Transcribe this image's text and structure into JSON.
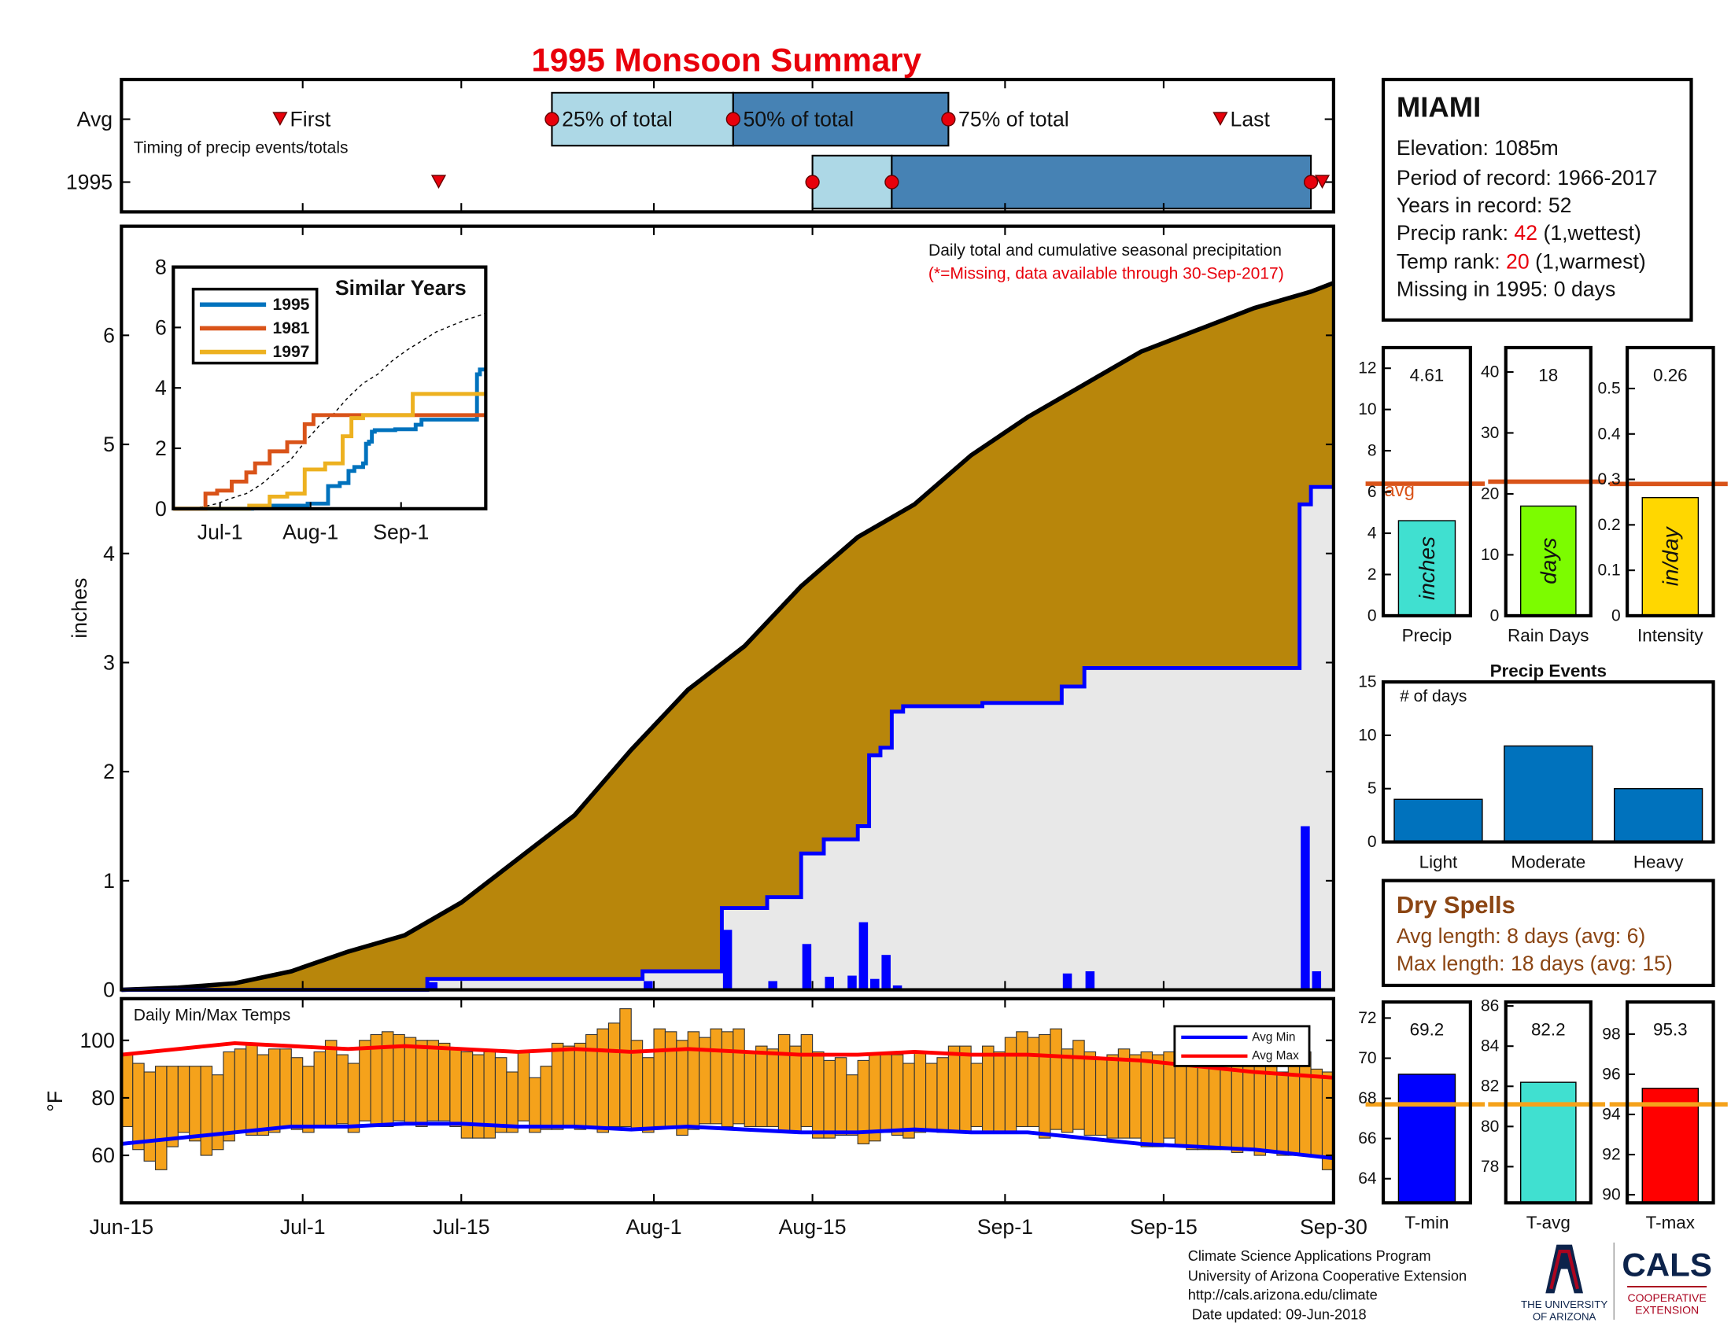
{
  "title": "1995 Monsoon Summary",
  "chart_data": [
    {
      "type": "timeline",
      "xlim": [
        0,
        107
      ],
      "note": "Timing of precip events/totals",
      "labels": {
        "first": "First",
        "p25": "25% of total",
        "p50": "50% of total",
        "p75": "75% of total",
        "last": "Last"
      },
      "colors": {
        "marker": "#e8000b",
        "p25": "#add8e6",
        "p50": "#4682b4"
      },
      "rows": [
        {
          "name": "Avg",
          "first": 14,
          "p25": 38,
          "p50": 54,
          "p75": 73,
          "last": 97
        },
        {
          "name": "1995",
          "first": 28,
          "p25": 61,
          "p50": 68,
          "p75": 105,
          "last": 106
        }
      ]
    },
    {
      "type": "step",
      "title": "Daily total and cumulative seasonal precipitation",
      "subtitle": "(*=Missing, data available through 30-Sep-2017)",
      "ylabel": "inches",
      "xlim": [
        0,
        107
      ],
      "ylim": [
        0,
        7
      ],
      "yticks": [
        0,
        1,
        2,
        3,
        4,
        5,
        6
      ],
      "average": {
        "color": "#b8860b",
        "x": [
          0,
          5,
          10,
          15,
          20,
          25,
          30,
          35,
          40,
          45,
          50,
          55,
          60,
          65,
          70,
          75,
          80,
          85,
          90,
          95,
          100,
          105,
          107
        ],
        "values": [
          0,
          0.02,
          0.06,
          0.17,
          0.35,
          0.5,
          0.8,
          1.2,
          1.6,
          2.2,
          2.75,
          3.15,
          3.7,
          4.15,
          4.45,
          4.9,
          5.25,
          5.55,
          5.85,
          6.05,
          6.25,
          6.4,
          6.48
        ]
      },
      "cumulative": {
        "color": "#0000ff",
        "x": [
          0,
          27,
          46,
          53,
          57,
          60,
          62,
          65,
          66,
          67,
          68,
          69,
          76,
          83,
          85,
          104,
          105,
          107
        ],
        "values": [
          0,
          0.1,
          0.17,
          0.75,
          0.85,
          1.25,
          1.38,
          1.5,
          2.15,
          2.22,
          2.55,
          2.6,
          2.63,
          2.78,
          2.95,
          4.45,
          4.61,
          4.61
        ]
      },
      "daily": {
        "color": "#0000ff",
        "x": [
          27,
          46,
          53,
          57,
          60,
          62,
          64,
          65,
          66,
          67,
          68,
          76,
          83,
          85,
          104,
          105
        ],
        "values": [
          0.07,
          0.08,
          0.55,
          0.08,
          0.42,
          0.12,
          0.13,
          0.62,
          0.1,
          0.32,
          0.04,
          0.01,
          0.15,
          0.17,
          1.5,
          0.17
        ]
      }
    },
    {
      "type": "line",
      "title": "Similar Years",
      "xlim": [
        0,
        107
      ],
      "ylim": [
        0,
        8
      ],
      "yticks": [
        0,
        2,
        4,
        6,
        8
      ],
      "xticks": [
        {
          "value": 16,
          "label": "Jul-1"
        },
        {
          "value": 47,
          "label": "Aug-1"
        },
        {
          "value": 78,
          "label": "Sep-1"
        }
      ],
      "series": [
        {
          "name": "1995",
          "color": "#0072bd",
          "x": [
            0,
            27,
            46,
            53,
            57,
            60,
            62,
            65,
            66,
            67,
            68,
            69,
            76,
            83,
            85,
            104,
            105,
            107
          ],
          "values": [
            0,
            0.1,
            0.17,
            0.75,
            0.85,
            1.25,
            1.38,
            1.5,
            2.15,
            2.22,
            2.55,
            2.6,
            2.63,
            2.78,
            2.95,
            4.45,
            4.61,
            4.61
          ]
        },
        {
          "name": "1981",
          "color": "#d95319",
          "x": [
            0,
            11,
            15,
            20,
            25,
            28,
            33,
            39,
            45,
            48,
            107
          ],
          "values": [
            0,
            0.5,
            0.6,
            0.9,
            1.2,
            1.5,
            1.9,
            2.2,
            2.8,
            3.1,
            3.1
          ]
        },
        {
          "name": "1997",
          "color": "#edb120",
          "x": [
            0,
            26,
            33,
            39,
            45,
            52,
            58,
            61,
            65,
            82,
            107
          ],
          "values": [
            0,
            0.1,
            0.4,
            0.5,
            1.3,
            1.5,
            2.4,
            3.0,
            3.1,
            3.8,
            3.8
          ]
        }
      ]
    },
    {
      "type": "range_bar",
      "title": "Daily Min/Max Temps",
      "ylabel": "°F",
      "bar_color": "#f5a21b",
      "xlim": [
        0,
        107
      ],
      "ylim": [
        43.5,
        114.5
      ],
      "yticks": [
        60,
        80,
        100
      ],
      "xticks": [
        {
          "value": 0,
          "label": "Jun-15"
        },
        {
          "value": 16,
          "label": "Jul-1"
        },
        {
          "value": 30,
          "label": "Jul-15"
        },
        {
          "value": 47,
          "label": "Aug-1"
        },
        {
          "value": 61,
          "label": "Aug-15"
        },
        {
          "value": 78,
          "label": "Sep-1"
        },
        {
          "value": 92,
          "label": "Sep-15"
        },
        {
          "value": 107,
          "label": "Sep-30"
        }
      ],
      "max": [
        95,
        92,
        89,
        91,
        91,
        91,
        91,
        91,
        88,
        96,
        97,
        99,
        95,
        97,
        97,
        94,
        91,
        96,
        100,
        95,
        92,
        100,
        102,
        103,
        102,
        101,
        100,
        100,
        99,
        97,
        96,
        95,
        96,
        94,
        89,
        96,
        87,
        91,
        99,
        98,
        99,
        102,
        104,
        106,
        111,
        100,
        94,
        104,
        103,
        100,
        103,
        101,
        104,
        103,
        104,
        96,
        98,
        97,
        102,
        98,
        102,
        96,
        93,
        94,
        88,
        93,
        95,
        95,
        95,
        92,
        96,
        92,
        94,
        98,
        98,
        92,
        98,
        96,
        101,
        103,
        101,
        102,
        104,
        97,
        100,
        96,
        94,
        95,
        97,
        95,
        96,
        95,
        96,
        97,
        94,
        91,
        93,
        92,
        92,
        94,
        95,
        91,
        89,
        92,
        96,
        90,
        89
      ],
      "min": [
        70,
        62,
        58,
        55,
        63,
        68,
        65,
        60,
        62,
        65,
        68,
        67,
        67,
        68,
        70,
        69,
        68,
        70,
        70,
        71,
        68,
        72,
        70,
        70,
        72,
        71,
        70,
        72,
        72,
        70,
        66,
        66,
        66,
        68,
        68,
        72,
        68,
        69,
        69,
        70,
        69,
        70,
        68,
        70,
        70,
        69,
        68,
        70,
        70,
        67,
        69,
        71,
        71,
        70,
        71,
        70,
        70,
        70,
        68,
        68,
        70,
        66,
        66,
        67,
        67,
        64,
        65,
        68,
        67,
        66,
        68,
        69,
        68,
        68,
        68,
        70,
        68,
        68,
        68,
        70,
        70,
        66,
        69,
        68,
        69,
        67,
        67,
        66,
        66,
        66,
        63,
        63,
        66,
        63,
        62,
        62,
        62,
        62,
        61,
        62,
        60,
        61,
        60,
        60,
        60,
        60,
        55
      ],
      "series": [
        {
          "name": "Avg Min",
          "color": "#0000ff",
          "x": [
            0,
            5,
            10,
            15,
            20,
            25,
            30,
            35,
            40,
            45,
            50,
            55,
            60,
            65,
            70,
            75,
            80,
            85,
            90,
            95,
            100,
            107
          ],
          "values": [
            64,
            66,
            68,
            70,
            70,
            71,
            71,
            70,
            70,
            69,
            70,
            69,
            68,
            68,
            69,
            68,
            68,
            66,
            64,
            63,
            62,
            59
          ]
        },
        {
          "name": "Avg Max",
          "color": "#ff0000",
          "x": [
            0,
            5,
            10,
            15,
            20,
            25,
            30,
            35,
            40,
            45,
            50,
            55,
            60,
            65,
            70,
            75,
            80,
            85,
            90,
            95,
            100,
            107
          ],
          "values": [
            95,
            97,
            99,
            98,
            97,
            98,
            97,
            96,
            97,
            96,
            97,
            96,
            95,
            95,
            96,
            95,
            95,
            94,
            93,
            91,
            89,
            87
          ]
        }
      ]
    },
    {
      "type": "bar",
      "categories": [
        "Precip"
      ],
      "values": [
        4.61
      ],
      "unit_label": "inches",
      "data_labels": true,
      "color": "#40e0d0",
      "avg": 6.4,
      "avg_label": "avg",
      "avg_color": "#d95319",
      "ylim": [
        0,
        13
      ],
      "yticks": [
        0,
        2,
        4,
        6,
        8,
        10,
        12
      ]
    },
    {
      "type": "bar",
      "categories": [
        "Rain Days"
      ],
      "values": [
        18
      ],
      "unit_label": "days",
      "data_labels": true,
      "color": "#7cfc00",
      "avg": 22,
      "avg_color": "#d95319",
      "ylim": [
        0,
        44
      ],
      "yticks": [
        0,
        10,
        20,
        30,
        40
      ]
    },
    {
      "type": "bar",
      "categories": [
        "Intensity"
      ],
      "values": [
        0.26
      ],
      "unit_label": "in/day",
      "data_labels": true,
      "color": "#ffd700",
      "avg": 0.29,
      "avg_color": "#d95319",
      "ylim": [
        0,
        0.59
      ],
      "yticks": [
        0,
        0.1,
        0.2,
        0.3,
        0.4,
        0.5
      ]
    },
    {
      "type": "bar",
      "title": "Precip Events",
      "ylabel": "# of days",
      "categories": [
        "Light",
        "Moderate",
        "Heavy"
      ],
      "values": [
        4,
        9,
        5
      ],
      "color": "#0072bd",
      "ylim": [
        0,
        15
      ],
      "yticks": [
        0,
        5,
        10,
        15
      ]
    },
    {
      "type": "bar",
      "categories": [
        "T-min"
      ],
      "values": [
        69.2
      ],
      "data_labels": true,
      "color": "#0000ff",
      "avg": 67.7,
      "avg_color": "#f5a21b",
      "ylim": [
        62.8,
        72.8
      ],
      "yticks": [
        64,
        66,
        68,
        70,
        72
      ]
    },
    {
      "type": "bar",
      "categories": [
        "T-avg"
      ],
      "values": [
        82.2
      ],
      "data_labels": true,
      "color": "#40e0d0",
      "avg": 81.1,
      "avg_color": "#f5a21b",
      "ylim": [
        76.2,
        86.2
      ],
      "yticks": [
        78,
        80,
        82,
        84,
        86
      ]
    },
    {
      "type": "bar",
      "categories": [
        "T-max"
      ],
      "values": [
        95.3
      ],
      "data_labels": true,
      "color": "#ff0000",
      "avg": 94.5,
      "avg_color": "#f5a21b",
      "ylim": [
        89.6,
        99.6
      ],
      "yticks": [
        90,
        92,
        94,
        96,
        98
      ]
    }
  ],
  "info": {
    "station": "MIAMI",
    "elevation": "Elevation: 1085m",
    "period": "Period of record: 1966-2017",
    "years": "Years in record: 52",
    "precip_rank": {
      "label": "Precip rank:",
      "value": 42,
      "note": "(1,wettest)"
    },
    "temp_rank": {
      "label": "Temp rank:",
      "value": 20,
      "note": "(1,warmest)"
    },
    "missing": "Missing in 1995: 0 days"
  },
  "dry_spells": {
    "title": "Dry Spells",
    "avg_length": "Avg length: 8 days (avg: 6)",
    "max_length": "Max length: 18 days (avg: 15)"
  },
  "footer": {
    "lines": [
      "Climate Science Applications Program",
      "University of Arizona Cooperative Extension",
      "http://cals.arizona.edu/climate",
      " Date updated: 09-Jun-2018"
    ],
    "university": [
      "THE UNIVERSITY",
      "OF ARIZONA"
    ],
    "cals": "CALS",
    "extension": [
      "COOPERATIVE",
      "EXTENSION"
    ]
  }
}
